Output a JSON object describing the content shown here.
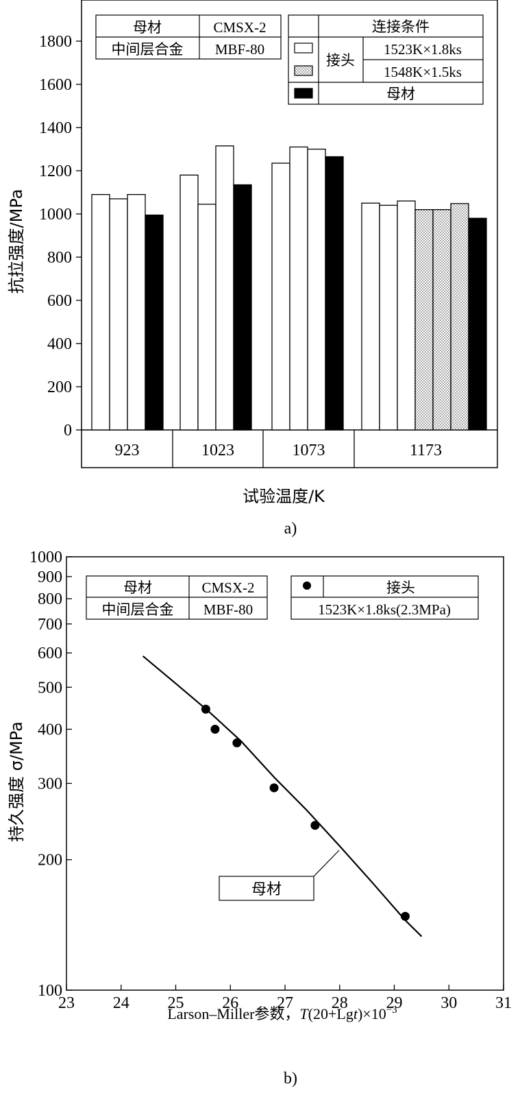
{
  "chart_data": [
    {
      "type": "bar",
      "panel_label": "a)",
      "xlabel": "试验温度/K",
      "ylabel": "抗拉强度/MPa",
      "ylim": [
        0,
        1900
      ],
      "yticks": [
        0,
        200,
        400,
        600,
        800,
        1000,
        1200,
        1400,
        1600,
        1800
      ],
      "groups": [
        {
          "temperature": "923",
          "bars": [
            {
              "series": "1523K×1.8ks",
              "value": 1090
            },
            {
              "series": "1523K×1.8ks",
              "value": 1070
            },
            {
              "series": "1523K×1.8ks",
              "value": 1090
            },
            {
              "series": "母材",
              "value": 995
            }
          ]
        },
        {
          "temperature": "1023",
          "bars": [
            {
              "series": "1523K×1.8ks",
              "value": 1180
            },
            {
              "series": "1523K×1.8ks",
              "value": 1045
            },
            {
              "series": "1523K×1.8ks",
              "value": 1315
            },
            {
              "series": "母材",
              "value": 1135
            }
          ]
        },
        {
          "temperature": "1073",
          "bars": [
            {
              "series": "1523K×1.8ks",
              "value": 1235
            },
            {
              "series": "1523K×1.8ks",
              "value": 1310
            },
            {
              "series": "1523K×1.8ks",
              "value": 1300
            },
            {
              "series": "母材",
              "value": 1265
            }
          ]
        },
        {
          "temperature": "1173",
          "bars": [
            {
              "series": "1523K×1.8ks",
              "value": 1050
            },
            {
              "series": "1523K×1.8ks",
              "value": 1040
            },
            {
              "series": "1523K×1.8ks",
              "value": 1060
            },
            {
              "series": "1548K×1.5ks",
              "value": 1020
            },
            {
              "series": "1548K×1.5ks",
              "value": 1020
            },
            {
              "series": "1548K×1.5ks",
              "value": 1048
            },
            {
              "series": "母材",
              "value": 980
            }
          ]
        }
      ],
      "series_styles": {
        "1523K×1.8ks": "white",
        "1548K×1.5ks": "dotted",
        "母材": "black"
      },
      "info_table": {
        "rows": [
          [
            "母材",
            "CMSX-2"
          ],
          [
            "中间层合金",
            "MBF-80"
          ]
        ]
      },
      "legend": {
        "header": "连接条件",
        "group_label": "接头",
        "entries": [
          {
            "style": "white",
            "label": "1523K×1.8ks"
          },
          {
            "style": "dotted",
            "label": "1548K×1.5ks"
          },
          {
            "style": "black",
            "label": "母材"
          }
        ]
      }
    },
    {
      "type": "scatter",
      "panel_label": "b)",
      "xlabel_prefix": "Larson–Miller参数，",
      "xlabel_formula": [
        "T",
        "(20+Lg",
        "t",
        ")×10",
        "−3"
      ],
      "ylabel": "持久强度 σ/MPa",
      "y_scale": "log",
      "xlim": [
        23,
        31
      ],
      "ylim": [
        100,
        1000
      ],
      "xticks": [
        23,
        24,
        25,
        26,
        27,
        28,
        29,
        30,
        31
      ],
      "yticks": [
        100,
        200,
        300,
        400,
        500,
        600,
        700,
        800,
        900,
        1000
      ],
      "series": [
        {
          "name": "1523K×1.8ks(2.3MPa)",
          "x": [
            25.55,
            25.72,
            26.12,
            26.8,
            27.55,
            29.2
          ],
          "y": [
            445,
            400,
            372,
            293,
            240,
            148
          ]
        }
      ],
      "curve": {
        "label": "母材",
        "x": [
          24.4,
          25.0,
          25.6,
          26.2,
          26.8,
          27.4,
          28.0,
          28.6,
          29.2,
          29.5
        ],
        "y": [
          590,
          510,
          440,
          375,
          310,
          260,
          215,
          177,
          145,
          133
        ]
      },
      "info_table": {
        "rows": [
          [
            "母材",
            "CMSX-2"
          ],
          [
            "中间层合金",
            "MBF-80"
          ]
        ]
      },
      "legend": {
        "marker_label": "接头",
        "condition": "1523K×1.8ks(2.3MPa)"
      }
    }
  ]
}
